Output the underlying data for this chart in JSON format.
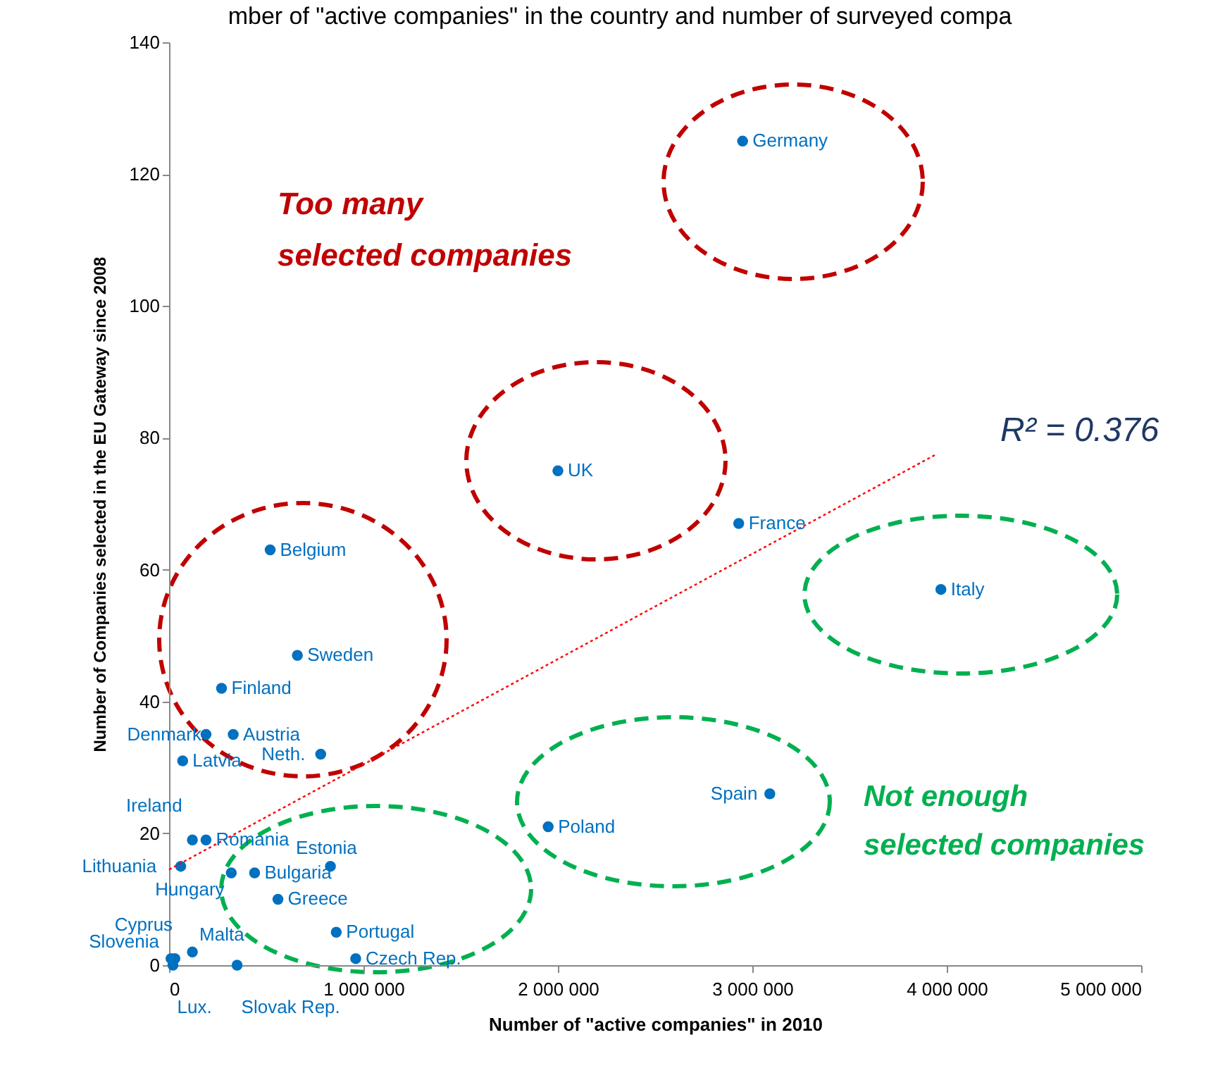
{
  "chart_data": {
    "type": "scatter",
    "title": "mber of \"active companies\" in the country and number of surveyed compa",
    "xlabel": "Number of \"active companies\" in 2010",
    "ylabel": "Number of Companies selected in the EU Gateway since 2008",
    "xlim": [
      0,
      5000000
    ],
    "ylim": [
      0,
      140
    ],
    "xticks": [
      0,
      {
        "value": 1000000,
        "label": "1 000 000"
      },
      {
        "value": 2000000,
        "label": "2 000 000"
      },
      {
        "value": 3000000,
        "label": "3 000 000"
      },
      {
        "value": 4000000,
        "label": "4 000 000"
      },
      {
        "value": 5000000,
        "label": "5 000 000"
      }
    ],
    "yticks": [
      0,
      20,
      40,
      60,
      80,
      100,
      120,
      140
    ],
    "marker": "circle",
    "annotations": [
      "Too many\nselected companies",
      "Not enough\nselected companies",
      "R² = 0.376"
    ],
    "series": [
      {
        "name": "Germany",
        "color": "#0070c0",
        "x": [
          2950000
        ],
        "values": [
          125
        ]
      },
      {
        "name": "UK",
        "color": "#0070c0",
        "x": [
          2000000
        ],
        "values": [
          75
        ]
      },
      {
        "name": "France",
        "color": "#0070c0",
        "x": [
          2930000
        ],
        "values": [
          67
        ]
      },
      {
        "name": "Italy",
        "color": "#0070c0",
        "x": [
          3970000
        ],
        "values": [
          57
        ]
      },
      {
        "name": "Spain",
        "color": "#0070c0",
        "x": [
          3090000
        ],
        "values": [
          26
        ]
      },
      {
        "name": "Poland",
        "color": "#0070c0",
        "x": [
          1950000
        ],
        "values": [
          21
        ]
      },
      {
        "name": "Belgium",
        "color": "#0070c0",
        "x": [
          520000
        ],
        "values": [
          63
        ]
      },
      {
        "name": "Sweden",
        "color": "#0070c0",
        "x": [
          660000
        ],
        "values": [
          47
        ]
      },
      {
        "name": "Finland",
        "color": "#0070c0",
        "x": [
          270000
        ],
        "values": [
          42
        ]
      },
      {
        "name": "Austria",
        "color": "#0070c0",
        "x": [
          330000
        ],
        "values": [
          35
        ]
      },
      {
        "name": "Denmark",
        "color": "#0070c0",
        "x": [
          190000
        ],
        "values": [
          35
        ]
      },
      {
        "name": "Latvia",
        "color": "#0070c0",
        "x": [
          70000
        ],
        "values": [
          31
        ]
      },
      {
        "name": "Neth.",
        "color": "#0070c0",
        "x": [
          780000
        ],
        "values": [
          32
        ]
      },
      {
        "name": "Ireland",
        "color": "#0070c0",
        "x": [
          120000
        ],
        "values": [
          19
        ]
      },
      {
        "name": "Romania",
        "color": "#0070c0",
        "x": [
          190000
        ],
        "values": [
          19
        ]
      },
      {
        "name": "Lithuania",
        "color": "#0070c0",
        "x": [
          60000
        ],
        "values": [
          15
        ]
      },
      {
        "name": "Hungary",
        "color": "#0070c0",
        "x": [
          320000
        ],
        "values": [
          14
        ]
      },
      {
        "name": "Bulgaria",
        "color": "#0070c0",
        "x": [
          440000
        ],
        "values": [
          14
        ]
      },
      {
        "name": "Estonia",
        "color": "#0070c0",
        "x": [
          830000
        ],
        "values": [
          15
        ]
      },
      {
        "name": "Greece",
        "color": "#0070c0",
        "x": [
          560000
        ],
        "values": [
          10
        ]
      },
      {
        "name": "Portugal",
        "color": "#0070c0",
        "x": [
          860000
        ],
        "values": [
          5
        ]
      },
      {
        "name": "Czech Rep.",
        "color": "#0070c0",
        "x": [
          960000
        ],
        "values": [
          1
        ]
      },
      {
        "name": "Malta",
        "color": "#0070c0",
        "x": [
          120000
        ],
        "values": [
          2
        ]
      },
      {
        "name": "Slovenia",
        "color": "#0070c0",
        "x": [
          30000
        ],
        "values": [
          1
        ]
      },
      {
        "name": "Cyprus",
        "color": "#0070c0",
        "x": [
          10000
        ],
        "values": [
          1
        ]
      },
      {
        "name": "Lux.",
        "color": "#0070c0",
        "x": [
          20000
        ],
        "values": [
          0
        ]
      },
      {
        "name": "Slovak Rep.",
        "color": "#0070c0",
        "x": [
          350000
        ],
        "values": [
          0
        ]
      },
      {
        "type": "line",
        "color": "#ff0000",
        "line_style": "dotted",
        "marker": "none",
        "x": [
          0,
          3940000
        ],
        "values": [
          14.5,
          77.4
        ]
      }
    ]
  }
}
